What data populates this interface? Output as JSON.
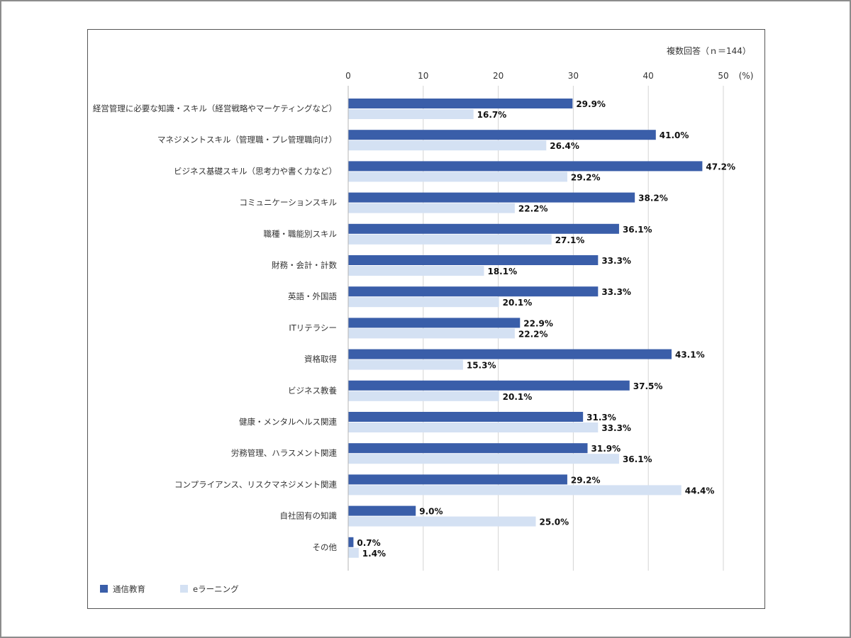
{
  "note": "複数回答（ｎ＝144）",
  "unit_label": "(%)",
  "colors": {
    "series1": "#3a5ea9",
    "series2": "#d4e1f3",
    "grid": "#d4d4d4"
  },
  "chart_data": {
    "type": "bar",
    "orientation": "horizontal",
    "title": "",
    "xlabel": "(%)",
    "ylabel": "",
    "xlim": [
      0,
      50
    ],
    "xticks": [
      0,
      10,
      20,
      30,
      40,
      50
    ],
    "grid": true,
    "legend_position": "bottom-left",
    "categories": [
      "経営管理に必要な知識・スキル（経営戦略やマーケティングなど）",
      "マネジメントスキル（管理職・プレ管理職向け）",
      "ビジネス基礎スキル（思考力や書く力など）",
      "コミュニケーションスキル",
      "職種・職能別スキル",
      "財務・会計・計数",
      "英語・外国語",
      "ITリテラシー",
      "資格取得",
      "ビジネス教養",
      "健康・メンタルヘルス関連",
      "労務管理、ハラスメント関連",
      "コンプライアンス、リスクマネジメント関連",
      "自社固有の知識",
      "その他"
    ],
    "series": [
      {
        "name": "通信教育",
        "values": [
          29.9,
          41.0,
          47.2,
          38.2,
          36.1,
          33.3,
          33.3,
          22.9,
          43.1,
          37.5,
          31.3,
          31.9,
          29.2,
          9.0,
          0.7
        ],
        "labels": [
          "29.9%",
          "41.0%",
          "47.2%",
          "38.2%",
          "36.1%",
          "33.3%",
          "33.3%",
          "22.9%",
          "43.1%",
          "37.5%",
          "31.3%",
          "31.9%",
          "29.2%",
          "9.0%",
          "0.7%"
        ]
      },
      {
        "name": "eラーニング",
        "values": [
          16.7,
          26.4,
          29.2,
          22.2,
          27.1,
          18.1,
          20.1,
          22.2,
          15.3,
          20.1,
          33.3,
          36.1,
          44.4,
          25.0,
          1.4
        ],
        "labels": [
          "16.7%",
          "26.4%",
          "29.2%",
          "22.2%",
          "27.1%",
          "18.1%",
          "20.1%",
          "22.2%",
          "15.3%",
          "20.1%",
          "33.3%",
          "36.1%",
          "44.4%",
          "25.0%",
          "1.4%"
        ]
      }
    ]
  }
}
